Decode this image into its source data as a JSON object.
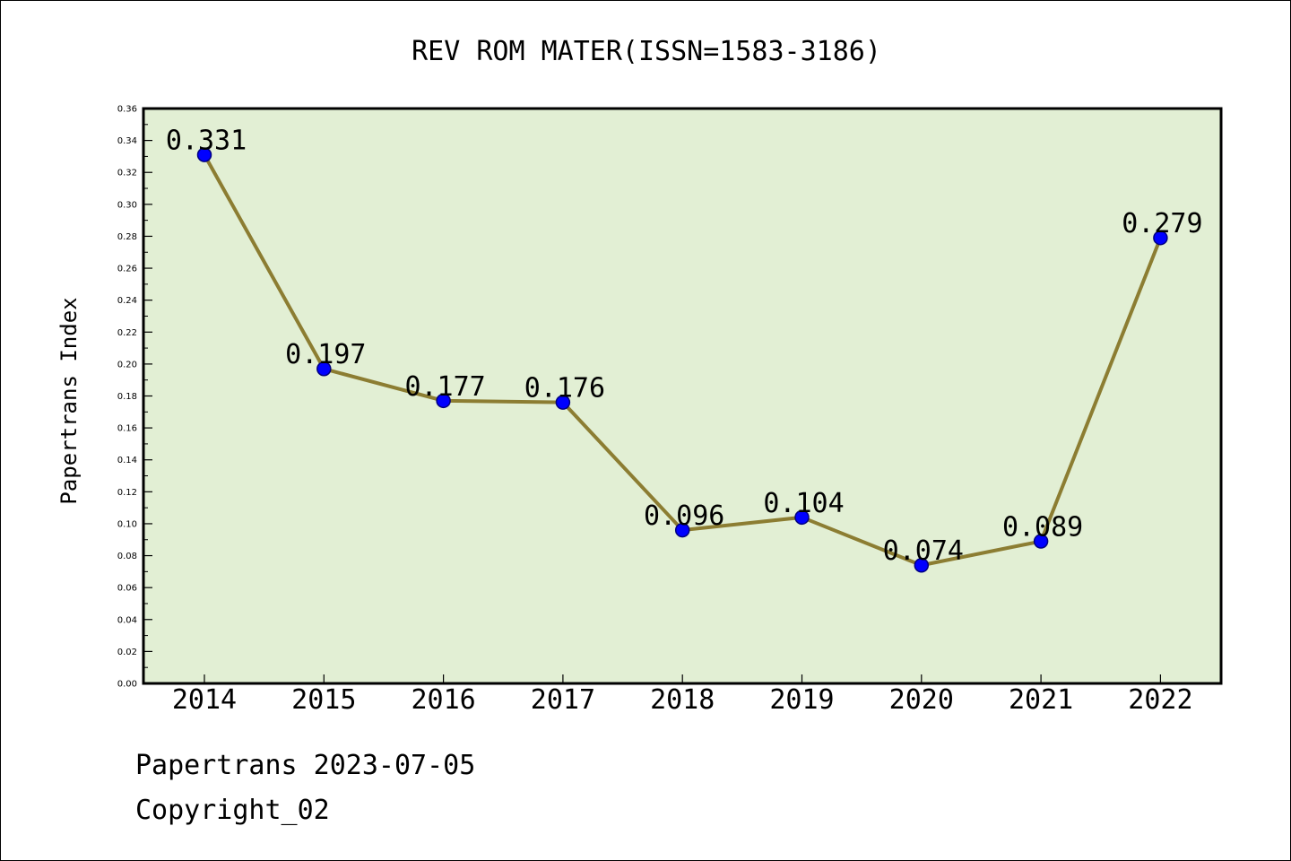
{
  "chart_data": {
    "type": "line",
    "title": "REV ROM MATER(ISSN=1583-3186)",
    "xlabel": "",
    "ylabel": "Papertrans Index",
    "categories": [
      "2014",
      "2015",
      "2016",
      "2017",
      "2018",
      "2019",
      "2020",
      "2021",
      "2022"
    ],
    "series": [
      {
        "values": [
          0.331,
          0.197,
          0.177,
          0.176,
          0.096,
          0.104,
          0.074,
          0.089,
          0.279
        ],
        "data_labels": [
          "0.331",
          "0.197",
          "0.177",
          "0.176",
          "0.096",
          "0.104",
          "0.074",
          "0.089",
          "0.279"
        ]
      }
    ],
    "ylim": [
      0,
      0.36
    ],
    "y_ticks": [
      "0.00",
      "0.02",
      "0.04",
      "0.06",
      "0.08",
      "0.10",
      "0.12",
      "0.14",
      "0.16",
      "0.18",
      "0.20",
      "0.22",
      "0.24",
      "0.26",
      "0.28",
      "0.30",
      "0.32",
      "0.34",
      "0.36"
    ],
    "grid": false,
    "legend": "none",
    "colors": {
      "plot_background": "#e2efd4",
      "line": "#8c7d32",
      "marker_fill": "#0000ff",
      "marker_stroke": "#000080",
      "axes": "#000000"
    }
  },
  "footer": {
    "line1": "Papertrans 2023-07-05",
    "line2": "Copyright_02"
  }
}
